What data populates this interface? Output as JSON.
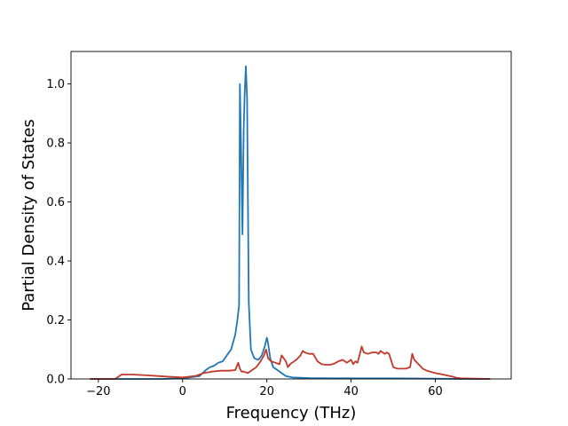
{
  "chart_data": {
    "type": "line",
    "title": "",
    "xlabel": "Frequency (THz)",
    "ylabel": "Partial Density of States",
    "xlim": [
      -26.5,
      78
    ],
    "ylim": [
      0,
      1.11
    ],
    "x_ticks": [
      -20,
      0,
      20,
      40,
      60
    ],
    "x_tick_labels": [
      "−20",
      "0",
      "20",
      "40",
      "60"
    ],
    "y_ticks": [
      0.0,
      0.2,
      0.4,
      0.6,
      0.8,
      1.0
    ],
    "y_tick_labels": [
      "0.0",
      "0.2",
      "0.4",
      "0.6",
      "0.8",
      "1.0"
    ],
    "grid": false,
    "series": [
      {
        "color": "#1f77b4",
        "x": [
          -22,
          -15,
          -10,
          -5,
          0,
          4,
          5.5,
          6.5,
          7.5,
          8.5,
          9.5,
          10.5,
          11.5,
          12.5,
          13.0,
          13.4,
          13.6,
          13.9,
          14.2,
          14.5,
          14.7,
          15.0,
          15.3,
          15.7,
          16.2,
          17.0,
          18.0,
          18.8,
          19.5,
          20.0,
          20.3,
          20.8,
          21.5,
          22.5,
          23.5,
          24.5,
          26,
          30,
          40,
          50,
          60,
          66,
          73
        ],
        "values": [
          0,
          0,
          0,
          0,
          0.002,
          0.01,
          0.03,
          0.04,
          0.045,
          0.055,
          0.06,
          0.08,
          0.1,
          0.15,
          0.2,
          0.25,
          1.0,
          0.75,
          0.49,
          0.85,
          0.96,
          1.06,
          0.95,
          0.26,
          0.1,
          0.07,
          0.065,
          0.08,
          0.11,
          0.14,
          0.12,
          0.07,
          0.04,
          0.03,
          0.02,
          0.01,
          0.005,
          0.003,
          0.002,
          0.002,
          0.001,
          0,
          0
        ]
      },
      {
        "color": "#c0392b",
        "x": [
          -22,
          -16,
          -14.5,
          -12,
          -8,
          -4,
          0,
          3,
          5,
          7,
          9,
          11,
          12.5,
          13.2,
          13.6,
          14.0,
          14.5,
          15.5,
          16.5,
          17.5,
          18.5,
          19.3,
          19.8,
          20.3,
          21.0,
          22.0,
          23.0,
          23.5,
          24.0,
          24.5,
          25.0,
          25.5,
          26.0,
          27.0,
          28.0,
          28.5,
          29.0,
          30.0,
          31.0,
          32.0,
          33.0,
          34.0,
          35.0,
          36.0,
          37.0,
          38.0,
          39.0,
          40.0,
          40.5,
          41.0,
          41.5,
          42.0,
          42.5,
          43.0,
          44.0,
          45.0,
          46.0,
          46.5,
          47.0,
          47.5,
          48.0,
          48.5,
          49.0,
          50.0,
          51.0,
          52.0,
          53.0,
          54.0,
          54.5,
          55.0,
          56.0,
          57.0,
          58.0,
          60.0,
          62.0,
          64.0,
          65.0,
          66.0,
          73.0
        ],
        "values": [
          0,
          0,
          0.015,
          0.015,
          0.012,
          0.008,
          0.005,
          0.01,
          0.02,
          0.025,
          0.028,
          0.028,
          0.03,
          0.055,
          0.035,
          0.025,
          0.025,
          0.02,
          0.03,
          0.04,
          0.06,
          0.08,
          0.1,
          0.07,
          0.06,
          0.055,
          0.05,
          0.08,
          0.07,
          0.06,
          0.04,
          0.05,
          0.055,
          0.065,
          0.08,
          0.095,
          0.09,
          0.085,
          0.085,
          0.06,
          0.05,
          0.048,
          0.048,
          0.052,
          0.06,
          0.065,
          0.055,
          0.065,
          0.05,
          0.06,
          0.055,
          0.08,
          0.11,
          0.09,
          0.085,
          0.09,
          0.09,
          0.085,
          0.095,
          0.09,
          0.085,
          0.09,
          0.085,
          0.04,
          0.035,
          0.035,
          0.035,
          0.04,
          0.085,
          0.065,
          0.05,
          0.035,
          0.028,
          0.02,
          0.014,
          0.008,
          0.004,
          0.002,
          0
        ]
      }
    ]
  }
}
